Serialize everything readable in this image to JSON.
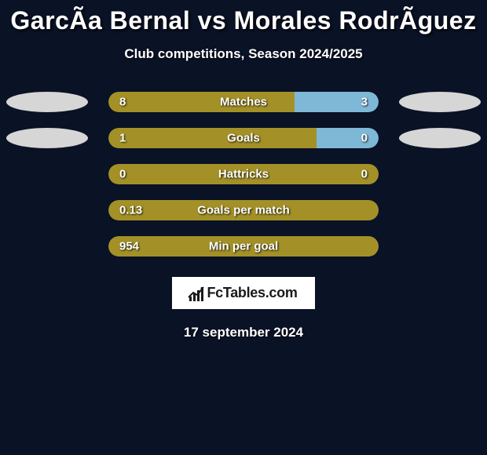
{
  "title": "GarcÃa Bernal vs Morales RodrÃguez",
  "subtitle": "Club competitions, Season 2024/2025",
  "date": "17 september 2024",
  "brand": "FcTables.com",
  "colors": {
    "background": "#0a1226",
    "bar_left": "#a39127",
    "bar_right": "#7fb8d6",
    "bar_neutral": "#a39127",
    "oval_left": "#d6d6d6",
    "oval_right": "#d6d6d6",
    "text": "#ffffff"
  },
  "rows": [
    {
      "label": "Matches",
      "left_val": "8",
      "right_val": "3",
      "left_pct": 69,
      "right_pct": 31,
      "show_ovals": true
    },
    {
      "label": "Goals",
      "left_val": "1",
      "right_val": "0",
      "left_pct": 77,
      "right_pct": 23,
      "show_ovals": true
    },
    {
      "label": "Hattricks",
      "left_val": "0",
      "right_val": "0",
      "left_pct": 100,
      "right_pct": 0,
      "show_ovals": false
    },
    {
      "label": "Goals per match",
      "left_val": "0.13",
      "right_val": "",
      "left_pct": 100,
      "right_pct": 0,
      "show_ovals": false
    },
    {
      "label": "Min per goal",
      "left_val": "954",
      "right_val": "",
      "left_pct": 100,
      "right_pct": 0,
      "show_ovals": false
    }
  ]
}
